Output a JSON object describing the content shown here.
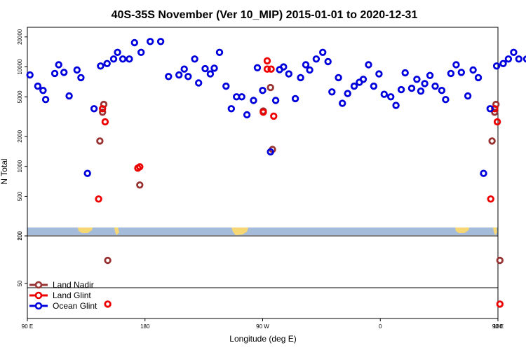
{
  "chart_data": {
    "type": "scatter",
    "title": "40S-35S November (Ver 10_MIP)   2015-01-01 to 2020-12-31",
    "xlabel": "Longitude (deg E)",
    "ylabel": "N Total",
    "x_scale": "longitude (wraps 90E → 180 → 0 → 180)",
    "x_range_unwrapped": [
      90,
      450
    ],
    "y_scale": "log",
    "upper_ylim": [
      200,
      25000
    ],
    "lower_ylim": [
      30,
      100
    ],
    "x_ticks": [
      {
        "value": 90,
        "label": "90 E"
      },
      {
        "value": 180,
        "label": "180"
      },
      {
        "value": 270,
        "label": "90 W"
      },
      {
        "value": 360,
        "label": "0"
      },
      {
        "value": 450,
        "label": "90 E"
      },
      {
        "value": 540,
        "label": "180"
      }
    ],
    "upper_y_ticks": [
      {
        "value": 200,
        "label": "200"
      },
      {
        "value": 500,
        "label": "500"
      },
      {
        "value": 1000,
        "label": "1000"
      },
      {
        "value": 2000,
        "label": "2000"
      },
      {
        "value": 5000,
        "label": "5000"
      },
      {
        "value": 10000,
        "label": "10000"
      },
      {
        "value": 20000,
        "label": "20000"
      }
    ],
    "lower_y_ticks": [
      {
        "value": 50,
        "label": "50"
      },
      {
        "value": 100,
        "label": "100"
      }
    ],
    "legend_position": "bottom-left",
    "series": [
      {
        "name": "Land Nadir",
        "color": "#993333",
        "points": [
          [
            145.5,
            1800
          ],
          [
            147.5,
            3500
          ],
          [
            148.5,
            4200
          ],
          [
            151.5,
            70
          ],
          [
            176,
            650
          ],
          [
            270.5,
            3600
          ],
          [
            276,
            6200
          ],
          [
            277.5,
            1480
          ],
          [
            445.5,
            1800
          ],
          [
            447.5,
            3500
          ],
          [
            448.5,
            4200
          ],
          [
            451.5,
            70
          ],
          [
            536,
            650
          ]
        ]
      },
      {
        "name": "Land Glint",
        "color": "#ee0000",
        "points": [
          [
            144.5,
            470
          ],
          [
            147.5,
            3800
          ],
          [
            149.5,
            2800
          ],
          [
            151.5,
            37
          ],
          [
            174.5,
            960
          ],
          [
            176,
            990
          ],
          [
            270.5,
            3500
          ],
          [
            273.5,
            9500
          ],
          [
            273.5,
            11500
          ],
          [
            276.5,
            9500
          ],
          [
            278.5,
            3200
          ],
          [
            444.5,
            470
          ],
          [
            447.5,
            3800
          ],
          [
            449.5,
            2800
          ],
          [
            451.5,
            37
          ],
          [
            534.5,
            960
          ],
          [
            536,
            990
          ]
        ]
      },
      {
        "name": "Ocean Glint",
        "color": "#0000dd",
        "points": [
          [
            92,
            8300
          ],
          [
            98,
            6400
          ],
          [
            102,
            5800
          ],
          [
            104,
            4700
          ],
          [
            111,
            8600
          ],
          [
            114,
            10500
          ],
          [
            118,
            8800
          ],
          [
            122,
            5100
          ],
          [
            128,
            9300
          ],
          [
            131,
            7800
          ],
          [
            136,
            850
          ],
          [
            141,
            3800
          ],
          [
            146,
            10200
          ],
          [
            151,
            10800
          ],
          [
            156,
            12000
          ],
          [
            159,
            14000
          ],
          [
            163,
            12000
          ],
          [
            168,
            12000
          ],
          [
            172,
            17500
          ],
          [
            177,
            14000
          ],
          [
            184,
            18000
          ],
          [
            192,
            18000
          ],
          [
            198,
            8000
          ],
          [
            206,
            8300
          ],
          [
            210,
            9500
          ],
          [
            213,
            8000
          ],
          [
            218,
            12000
          ],
          [
            221,
            6900
          ],
          [
            226,
            9600
          ],
          [
            230,
            8500
          ],
          [
            233,
            9700
          ],
          [
            237,
            14000
          ],
          [
            242,
            6400
          ],
          [
            246,
            3800
          ],
          [
            250,
            5000
          ],
          [
            254,
            5000
          ],
          [
            258,
            3300
          ],
          [
            263,
            4600
          ],
          [
            266,
            9800
          ],
          [
            270,
            5800
          ],
          [
            276,
            1400
          ],
          [
            280,
            4600
          ],
          [
            283,
            9400
          ],
          [
            286,
            10000
          ],
          [
            290,
            8500
          ],
          [
            295,
            4800
          ],
          [
            299,
            7800
          ],
          [
            303,
            10500
          ],
          [
            306,
            9300
          ],
          [
            311,
            12000
          ],
          [
            316,
            14000
          ],
          [
            320,
            11300
          ],
          [
            323,
            5600
          ],
          [
            328,
            7800
          ],
          [
            331,
            4300
          ],
          [
            335,
            5400
          ],
          [
            340,
            6400
          ],
          [
            344,
            7000
          ],
          [
            347,
            7500
          ],
          [
            351,
            10500
          ],
          [
            355,
            6400
          ],
          [
            359,
            8500
          ],
          [
            363,
            5300
          ],
          [
            368,
            5000
          ],
          [
            372,
            4100
          ],
          [
            376,
            5900
          ],
          [
            379,
            8700
          ],
          [
            384,
            6100
          ],
          [
            388,
            7500
          ],
          [
            391,
            5700
          ],
          [
            394,
            6800
          ],
          [
            398,
            8200
          ],
          [
            402,
            6400
          ],
          [
            407,
            5800
          ],
          [
            410,
            4700
          ],
          [
            414,
            8600
          ],
          [
            418,
            10500
          ],
          [
            422,
            8800
          ],
          [
            427,
            5100
          ],
          [
            431,
            9300
          ],
          [
            435,
            7800
          ],
          [
            439,
            850
          ],
          [
            444,
            3800
          ],
          [
            449,
            10200
          ],
          [
            454,
            10800
          ],
          [
            458,
            12000
          ],
          [
            462,
            14000
          ],
          [
            466,
            12000
          ],
          [
            472,
            12000
          ]
        ]
      }
    ]
  }
}
